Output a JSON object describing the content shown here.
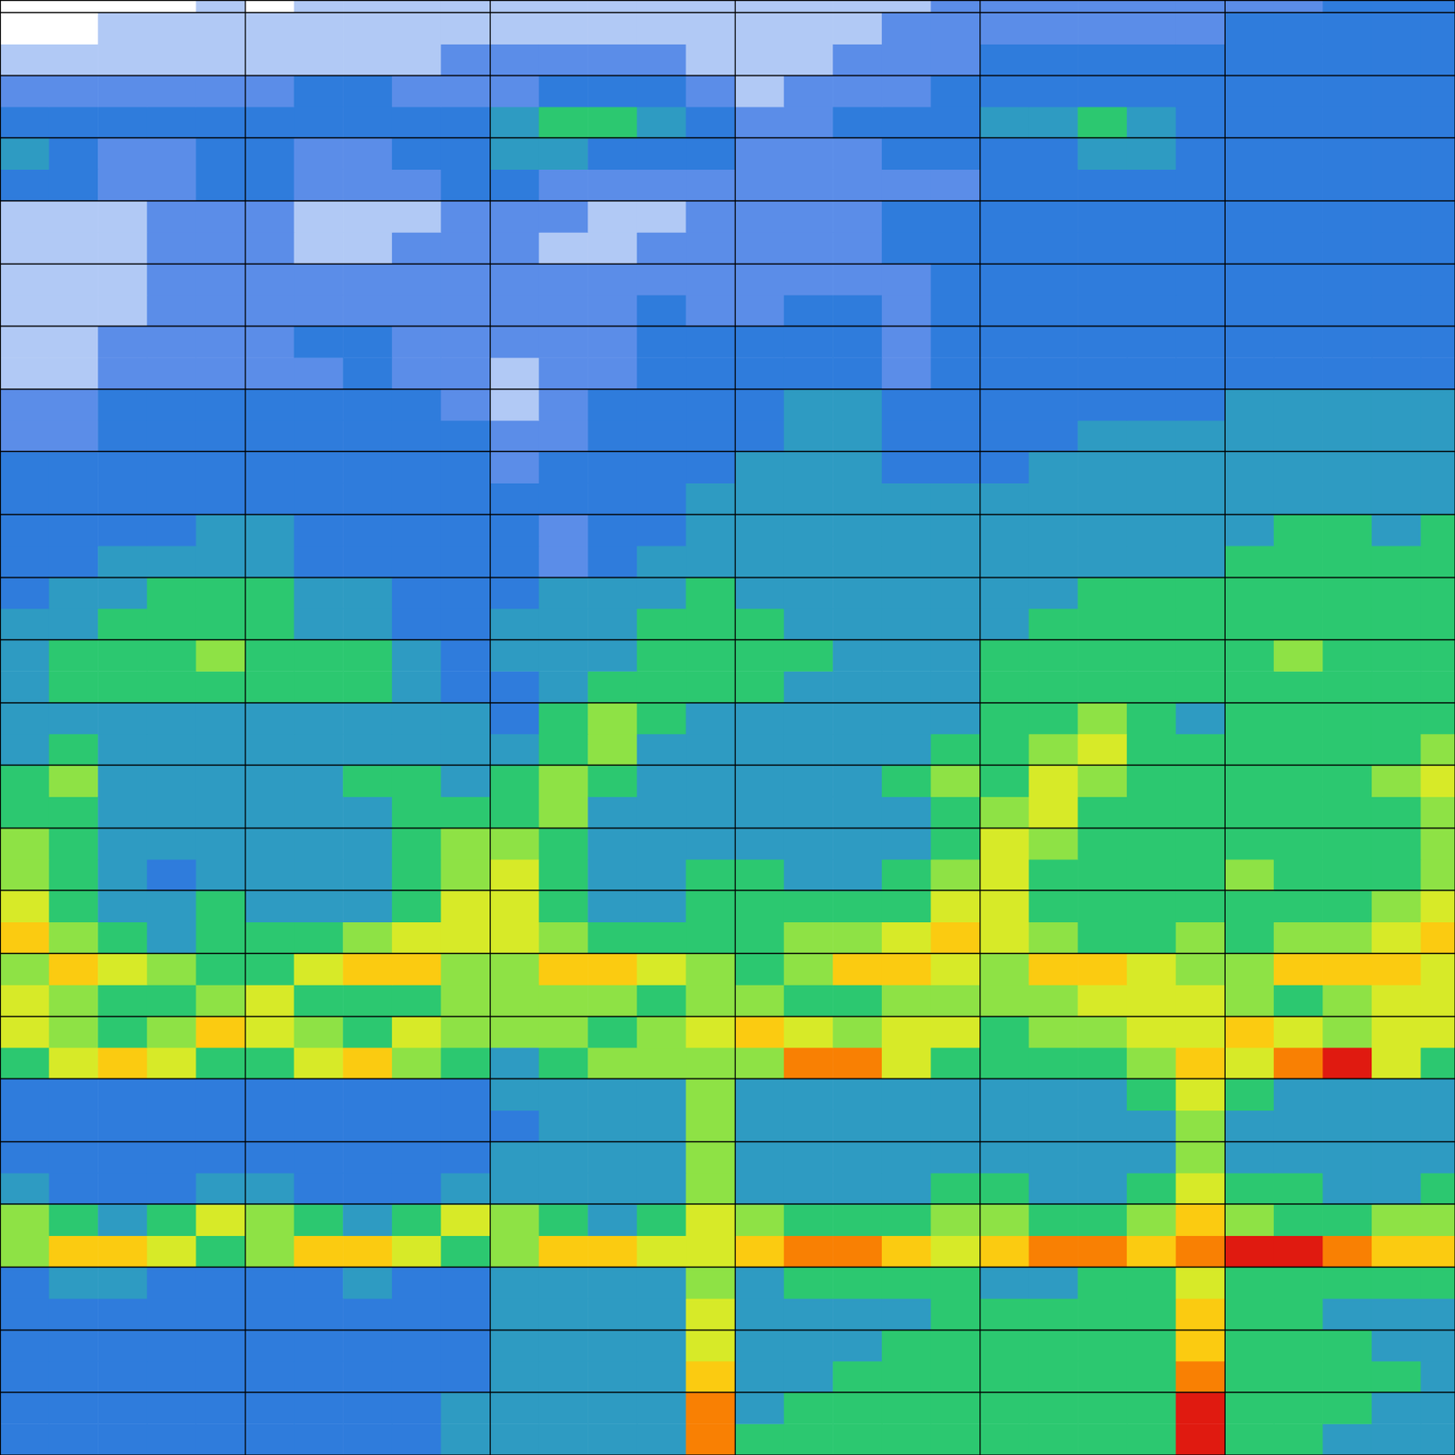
{
  "chart_data": {
    "type": "heatmap",
    "x": [
      0.5,
      1.5,
      2.5,
      3.5,
      4.5,
      5.5,
      6.5,
      7.5,
      8.5,
      9.5,
      10.5,
      11.5,
      12.5,
      13.5,
      14.5,
      15.5,
      16.5,
      17.5,
      18.5,
      19.5,
      20.5,
      21.5,
      22.5,
      23.5,
      24.5,
      25.5,
      26.5,
      27.5,
      28.5,
      29.5
    ],
    "y": [
      0.25,
      0.75,
      1.25,
      1.75,
      2.25,
      2.75,
      3.25,
      3.75,
      4.25,
      4.75,
      5.25,
      5.75,
      6.25,
      6.75,
      7.25,
      7.75,
      8.25,
      8.75,
      9.25,
      9.75,
      10.25,
      10.75,
      11.25,
      11.75,
      12.25,
      12.75,
      13.25,
      13.75,
      14.25,
      14.75,
      15.25,
      15.75,
      16.25,
      16.75,
      17.25,
      17.75,
      18.25,
      18.75,
      19.25,
      19.75,
      20.25,
      20.75,
      21.25,
      21.75,
      22.25,
      22.75,
      23.25
    ],
    "z": [
      [
        3,
        3,
        3,
        3,
        3,
        3,
        3,
        3,
        3,
        4,
        4,
        4,
        4,
        4,
        9,
        5,
        5,
        5,
        5,
        5,
        5,
        5,
        5,
        5,
        10,
        5,
        5,
        4,
        4,
        4
      ],
      [
        3,
        3,
        3,
        3,
        3,
        3,
        3,
        3,
        3,
        4,
        4,
        4,
        4,
        4,
        9,
        4,
        5,
        5,
        5,
        5,
        5,
        5,
        5,
        5,
        10,
        5,
        5,
        5,
        4,
        4
      ],
      [
        3,
        3,
        3,
        3,
        3,
        3,
        3,
        3,
        3,
        3,
        4,
        4,
        4,
        4,
        8,
        4,
        4,
        5,
        5,
        5,
        5,
        5,
        5,
        5,
        9,
        5,
        5,
        5,
        5,
        4
      ],
      [
        3,
        3,
        3,
        3,
        3,
        3,
        3,
        3,
        3,
        3,
        4,
        4,
        4,
        4,
        7,
        4,
        4,
        4,
        5,
        5,
        5,
        5,
        5,
        5,
        8,
        5,
        5,
        5,
        4,
        4
      ],
      [
        3,
        3,
        3,
        3,
        3,
        3,
        3,
        3,
        3,
        3,
        4,
        4,
        4,
        4,
        7,
        4,
        4,
        4,
        4,
        5,
        5,
        5,
        5,
        5,
        8,
        5,
        5,
        4,
        4,
        4
      ],
      [
        3,
        4,
        4,
        3,
        3,
        3,
        3,
        4,
        3,
        3,
        4,
        4,
        4,
        4,
        6,
        4,
        5,
        5,
        5,
        5,
        4,
        4,
        5,
        5,
        7,
        5,
        5,
        5,
        5,
        5
      ],
      [
        6,
        8,
        8,
        7,
        5,
        6,
        8,
        8,
        7,
        5,
        6,
        8,
        8,
        7,
        7,
        8,
        9,
        9,
        8,
        7,
        8,
        9,
        9,
        8,
        9,
        10,
        10,
        9,
        8,
        8
      ],
      [
        6,
        5,
        4,
        5,
        7,
        6,
        5,
        4,
        5,
        7,
        6,
        5,
        4,
        5,
        7,
        6,
        5,
        5,
        5,
        6,
        6,
        5,
        5,
        6,
        8,
        6,
        5,
        5,
        6,
        6
      ],
      [
        4,
        3,
        3,
        3,
        4,
        4,
        3,
        3,
        3,
        4,
        4,
        4,
        4,
        4,
        6,
        4,
        4,
        4,
        4,
        5,
        5,
        4,
        4,
        5,
        7,
        5,
        5,
        4,
        4,
        5
      ],
      [
        3,
        3,
        3,
        3,
        3,
        3,
        3,
        3,
        3,
        3,
        4,
        4,
        4,
        4,
        6,
        4,
        4,
        4,
        4,
        4,
        4,
        4,
        4,
        4,
        6,
        4,
        4,
        4,
        4,
        4
      ],
      [
        3,
        3,
        3,
        3,
        3,
        3,
        3,
        3,
        3,
        3,
        3,
        4,
        4,
        4,
        6,
        4,
        4,
        4,
        4,
        4,
        4,
        4,
        4,
        4,
        6,
        4,
        4,
        4,
        4,
        4
      ],
      [
        3,
        3,
        3,
        3,
        3,
        3,
        3,
        3,
        3,
        3,
        4,
        4,
        4,
        4,
        6,
        4,
        4,
        4,
        4,
        4,
        4,
        4,
        4,
        5,
        7,
        5,
        4,
        4,
        4,
        4
      ],
      [
        5,
        7,
        8,
        7,
        5,
        5,
        7,
        8,
        6,
        5,
        4,
        5,
        6,
        6,
        6,
        6,
        9,
        9,
        7,
        5,
        5,
        5,
        5,
        6,
        8,
        7,
        9,
        10,
        7,
        5
      ],
      [
        7,
        6,
        5,
        6,
        8,
        7,
        6,
        5,
        7,
        6,
        6,
        6,
        5,
        6,
        7,
        8,
        7,
        6,
        7,
        7,
        5,
        6,
        6,
        7,
        7,
        8,
        7,
        6,
        7,
        7
      ],
      [
        7,
        6,
        5,
        5,
        6,
        7,
        5,
        5,
        5,
        6,
        6,
        6,
        6,
        5,
        6,
        6,
        5,
        5,
        6,
        6,
        6,
        6,
        7,
        7,
        7,
        6,
        5,
        6,
        7,
        7
      ],
      [
        6,
        8,
        7,
        6,
        5,
        5,
        7,
        8,
        8,
        6,
        6,
        8,
        8,
        7,
        6,
        5,
        6,
        8,
        8,
        7,
        6,
        8,
        8,
        7,
        6,
        6,
        8,
        8,
        8,
        7
      ],
      [
        8,
        6,
        5,
        4,
        5,
        5,
        5,
        6,
        7,
        7,
        7,
        6,
        5,
        5,
        5,
        5,
        6,
        6,
        7,
        8,
        7,
        6,
        5,
        5,
        6,
        5,
        6,
        6,
        7,
        8
      ],
      [
        7,
        5,
        4,
        4,
        5,
        4,
        4,
        4,
        5,
        7,
        7,
        5,
        4,
        4,
        5,
        5,
        5,
        5,
        5,
        7,
        7,
        5,
        5,
        5,
        5,
        5,
        5,
        5,
        6,
        7
      ],
      [
        6,
        5,
        4,
        3,
        4,
        4,
        4,
        4,
        5,
        6,
        7,
        5,
        4,
        4,
        5,
        5,
        4,
        4,
        5,
        6,
        7,
        5,
        5,
        5,
        5,
        6,
        5,
        5,
        5,
        6
      ],
      [
        6,
        5,
        4,
        4,
        4,
        4,
        4,
        4,
        5,
        6,
        6,
        5,
        4,
        4,
        4,
        4,
        4,
        4,
        4,
        5,
        7,
        6,
        5,
        5,
        5,
        5,
        5,
        5,
        5,
        6
      ],
      [
        5,
        5,
        4,
        4,
        4,
        4,
        4,
        4,
        5,
        5,
        5,
        6,
        4,
        4,
        4,
        4,
        4,
        4,
        4,
        5,
        6,
        7,
        5,
        5,
        5,
        5,
        5,
        5,
        5,
        6
      ],
      [
        5,
        6,
        4,
        4,
        4,
        4,
        4,
        5,
        5,
        4,
        5,
        6,
        5,
        4,
        4,
        4,
        4,
        4,
        5,
        6,
        5,
        7,
        6,
        5,
        5,
        5,
        5,
        5,
        6,
        7
      ],
      [
        4,
        5,
        4,
        4,
        4,
        4,
        4,
        4,
        4,
        4,
        4,
        5,
        6,
        4,
        4,
        4,
        4,
        4,
        4,
        5,
        5,
        6,
        7,
        5,
        5,
        5,
        5,
        5,
        5,
        6
      ],
      [
        4,
        4,
        4,
        4,
        4,
        4,
        4,
        4,
        4,
        4,
        3,
        5,
        6,
        5,
        4,
        4,
        4,
        4,
        4,
        4,
        5,
        5,
        6,
        5,
        4,
        5,
        5,
        5,
        5,
        5
      ],
      [
        4,
        5,
        5,
        5,
        5,
        5,
        5,
        5,
        4,
        3,
        3,
        4,
        5,
        5,
        5,
        5,
        4,
        4,
        4,
        4,
        5,
        5,
        5,
        5,
        5,
        5,
        5,
        5,
        5,
        5
      ],
      [
        4,
        5,
        5,
        5,
        6,
        5,
        5,
        5,
        4,
        3,
        4,
        4,
        4,
        5,
        5,
        5,
        5,
        4,
        4,
        4,
        5,
        5,
        5,
        5,
        5,
        5,
        6,
        5,
        5,
        5
      ],
      [
        4,
        4,
        5,
        5,
        5,
        5,
        4,
        4,
        3,
        3,
        4,
        4,
        4,
        5,
        5,
        5,
        4,
        4,
        4,
        4,
        4,
        5,
        5,
        5,
        5,
        5,
        5,
        5,
        5,
        5
      ],
      [
        3,
        4,
        4,
        5,
        5,
        5,
        4,
        4,
        3,
        3,
        3,
        4,
        4,
        4,
        5,
        4,
        4,
        4,
        4,
        4,
        4,
        4,
        5,
        5,
        5,
        5,
        5,
        5,
        5,
        5
      ],
      [
        3,
        3,
        4,
        4,
        4,
        4,
        3,
        3,
        3,
        3,
        3,
        2,
        3,
        4,
        4,
        4,
        4,
        4,
        4,
        4,
        4,
        4,
        4,
        4,
        4,
        5,
        5,
        5,
        5,
        5
      ],
      [
        3,
        3,
        3,
        3,
        4,
        4,
        3,
        3,
        3,
        3,
        3,
        2,
        3,
        3,
        4,
        4,
        4,
        4,
        4,
        4,
        4,
        4,
        4,
        4,
        4,
        4,
        5,
        5,
        4,
        5
      ],
      [
        3,
        3,
        3,
        3,
        3,
        3,
        3,
        3,
        3,
        3,
        3,
        3,
        3,
        3,
        4,
        4,
        4,
        4,
        4,
        4,
        4,
        4,
        4,
        4,
        4,
        4,
        4,
        4,
        4,
        4
      ],
      [
        3,
        3,
        3,
        3,
        3,
        3,
        3,
        3,
        3,
        3,
        2,
        3,
        3,
        3,
        3,
        4,
        4,
        4,
        3,
        3,
        3,
        4,
        4,
        4,
        4,
        4,
        4,
        4,
        4,
        4
      ],
      [
        2,
        2,
        3,
        3,
        3,
        3,
        3,
        3,
        3,
        3,
        2,
        2,
        3,
        3,
        3,
        3,
        4,
        4,
        3,
        3,
        3,
        3,
        4,
        4,
        4,
        4,
        4,
        4,
        4,
        4
      ],
      [
        2,
        2,
        3,
        3,
        3,
        3,
        3,
        3,
        3,
        2,
        1,
        2,
        3,
        3,
        3,
        3,
        4,
        4,
        3,
        3,
        3,
        3,
        3,
        3,
        3,
        4,
        4,
        4,
        4,
        4
      ],
      [
        1,
        1,
        2,
        2,
        2,
        2,
        2,
        3,
        2,
        2,
        1,
        2,
        2,
        3,
        3,
        3,
        3,
        3,
        2,
        3,
        3,
        3,
        3,
        3,
        3,
        3,
        3,
        3,
        3,
        3
      ],
      [
        1,
        1,
        2,
        2,
        2,
        2,
        3,
        3,
        2,
        2,
        2,
        2,
        2,
        3,
        3,
        3,
        3,
        3,
        2,
        3,
        3,
        3,
        3,
        3,
        3,
        3,
        3,
        3,
        3,
        3
      ],
      [
        1,
        1,
        1,
        2,
        2,
        2,
        2,
        2,
        2,
        2,
        2,
        2,
        2,
        3,
        2,
        2,
        3,
        3,
        2,
        3,
        3,
        3,
        3,
        3,
        3,
        3,
        3,
        3,
        3,
        3
      ],
      [
        1,
        1,
        1,
        2,
        2,
        2,
        2,
        2,
        2,
        2,
        2,
        2,
        2,
        2,
        2,
        2,
        2,
        2,
        2,
        3,
        3,
        3,
        3,
        3,
        3,
        3,
        3,
        3,
        3,
        3
      ],
      [
        1,
        1,
        1,
        2,
        2,
        2,
        1,
        1,
        2,
        2,
        2,
        1,
        1,
        2,
        2,
        2,
        2,
        2,
        3,
        3,
        3,
        3,
        3,
        3,
        3,
        3,
        3,
        3,
        3,
        3
      ],
      [
        1,
        1,
        1,
        2,
        2,
        2,
        1,
        1,
        1,
        2,
        2,
        2,
        1,
        1,
        2,
        2,
        2,
        2,
        3,
        3,
        3,
        3,
        3,
        3,
        3,
        3,
        3,
        3,
        3,
        3
      ],
      [
        3,
        3,
        2,
        2,
        3,
        3,
        2,
        2,
        2,
        3,
        3,
        2,
        2,
        2,
        2,
        2,
        2,
        2,
        2,
        2,
        3,
        3,
        3,
        3,
        3,
        3,
        3,
        3,
        3,
        3
      ],
      [
        4,
        3,
        2,
        2,
        3,
        3,
        2,
        2,
        3,
        3,
        4,
        4,
        3,
        3,
        3,
        2,
        2,
        2,
        3,
        3,
        3,
        3,
        4,
        4,
        3,
        3,
        3,
        3,
        3,
        3
      ],
      [
        3,
        3,
        3,
        3,
        3,
        3,
        3,
        3,
        3,
        3,
        4,
        5,
        5,
        4,
        3,
        2,
        2,
        3,
        3,
        3,
        4,
        4,
        5,
        4,
        3,
        3,
        3,
        3,
        3,
        3
      ],
      [
        2,
        2,
        2,
        2,
        2,
        2,
        3,
        3,
        2,
        2,
        2,
        3,
        3,
        3,
        2,
        1,
        2,
        2,
        2,
        3,
        3,
        3,
        3,
        3,
        3,
        3,
        3,
        3,
        3,
        3
      ],
      [
        1,
        1,
        1,
        1,
        1,
        1,
        1,
        1,
        1,
        2,
        2,
        2,
        2,
        2,
        1,
        1,
        1,
        2,
        2,
        2,
        3,
        3,
        3,
        3,
        3,
        3,
        3,
        3,
        3,
        3
      ],
      [
        0,
        0,
        1,
        1,
        1,
        1,
        1,
        1,
        1,
        1,
        1,
        1,
        1,
        1,
        1,
        1,
        1,
        1,
        2,
        2,
        2,
        2,
        2,
        2,
        2,
        3,
        3,
        3,
        3,
        3
      ],
      [
        0,
        0,
        0,
        0,
        1,
        0,
        1,
        1,
        1,
        1,
        1,
        1,
        1,
        1,
        1,
        1,
        1,
        1,
        1,
        2,
        2,
        2,
        2,
        2,
        2,
        2,
        2,
        3,
        3,
        3
      ]
    ],
    "zlim": [
      0,
      10
    ],
    "xlim": [
      0,
      29.7
    ],
    "ylim": [
      0,
      23.2
    ],
    "xticks": [
      5,
      10,
      15,
      20,
      25
    ],
    "yticks": [
      1,
      2,
      3,
      4,
      5,
      6,
      7,
      8,
      9,
      10,
      11,
      12,
      13,
      14,
      15,
      16,
      17,
      18,
      19,
      20,
      21,
      22,
      23
    ],
    "grid": true,
    "tick_labels": false
  }
}
